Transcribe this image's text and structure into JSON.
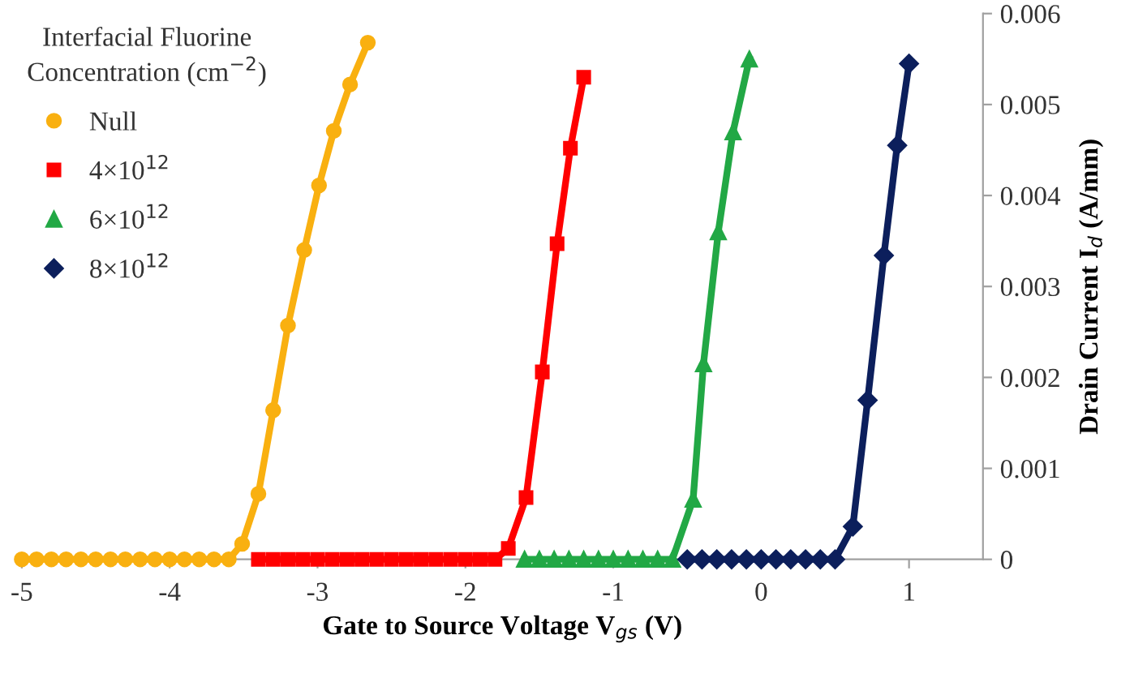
{
  "chart_data": {
    "type": "line",
    "xlabel": "Gate to Source Voltage V$_{gs}$ (V)",
    "ylabel": "Drain Current I$_{d}$ (A/mm)",
    "legend_title": "Interfacial Fluorine\nConcentration (cm$^{−2}$)",
    "xlim": [
      -5,
      1.5
    ],
    "xticks": [
      -5,
      -4,
      -3,
      -2,
      -1,
      0,
      1
    ],
    "ylim": [
      0,
      0.006
    ],
    "yticks": [
      0,
      0.001,
      0.002,
      0.003,
      0.004,
      0.005,
      0.006
    ],
    "grid": false,
    "legend": "top left",
    "line_style": "solid",
    "series": [
      {
        "name": "Null",
        "color": "#f9b010",
        "marker": "circle",
        "x": [
          -5,
          -4.9,
          -4.8,
          -4.7,
          -4.6,
          -4.5,
          -4.4,
          -4.3,
          -4.2,
          -4.1,
          -4,
          -3.9,
          -3.8,
          -3.7,
          -3.6,
          -3.51,
          -3.4,
          -3.3,
          -3.2,
          -3.09,
          -2.99,
          -2.89,
          -2.78,
          -2.66
        ],
        "values": [
          0,
          0,
          0,
          0,
          0,
          0,
          0,
          0,
          0,
          0,
          0,
          0,
          0,
          0,
          0,
          0.00017,
          0.00072,
          0.00164,
          0.00257,
          0.0034,
          0.00411,
          0.00471,
          0.00522,
          0.00568
        ]
      },
      {
        "name": "4×10$^{12}$",
        "color": "#ff0000",
        "marker": "square",
        "x": [
          -3.4,
          -3.3,
          -3.2,
          -3.1,
          -3,
          -2.9,
          -2.8,
          -2.7,
          -2.6,
          -2.5,
          -2.4,
          -2.3,
          -2.2,
          -2.1,
          -2,
          -1.9,
          -1.8,
          -1.71,
          -1.59,
          -1.48,
          -1.38,
          -1.29,
          -1.2
        ],
        "values": [
          0,
          0,
          0,
          0,
          0,
          0,
          0,
          0,
          0,
          0,
          0,
          0,
          0,
          0,
          0,
          0,
          0,
          0.00012,
          0.00068,
          0.00206,
          0.00347,
          0.00452,
          0.0053
        ]
      },
      {
        "name": "6×10$^{12}$",
        "color": "#22a845",
        "marker": "triangle",
        "x": [
          -1.6,
          -1.5,
          -1.4,
          -1.3,
          -1.2,
          -1.1,
          -1,
          -0.9,
          -0.8,
          -0.7,
          -0.6,
          -0.46,
          -0.39,
          -0.29,
          -0.19,
          -0.08
        ],
        "values": [
          0,
          0,
          0,
          0,
          0,
          0,
          0,
          0,
          0,
          0,
          0,
          0.00066,
          0.00215,
          0.0036,
          0.0047,
          0.0055
        ]
      },
      {
        "name": "8×10$^{12}$",
        "color": "#0c1f5c",
        "marker": "diamond",
        "x": [
          -0.5,
          -0.4,
          -0.3,
          -0.2,
          -0.1,
          0,
          0.1,
          0.2,
          0.3,
          0.4,
          0.5,
          0.62,
          0.72,
          0.83,
          0.92,
          1.0
        ],
        "values": [
          0,
          0,
          0,
          0,
          0,
          0,
          0,
          0,
          0,
          0,
          0,
          0.00036,
          0.00175,
          0.00334,
          0.00455,
          0.00545
        ]
      }
    ]
  }
}
